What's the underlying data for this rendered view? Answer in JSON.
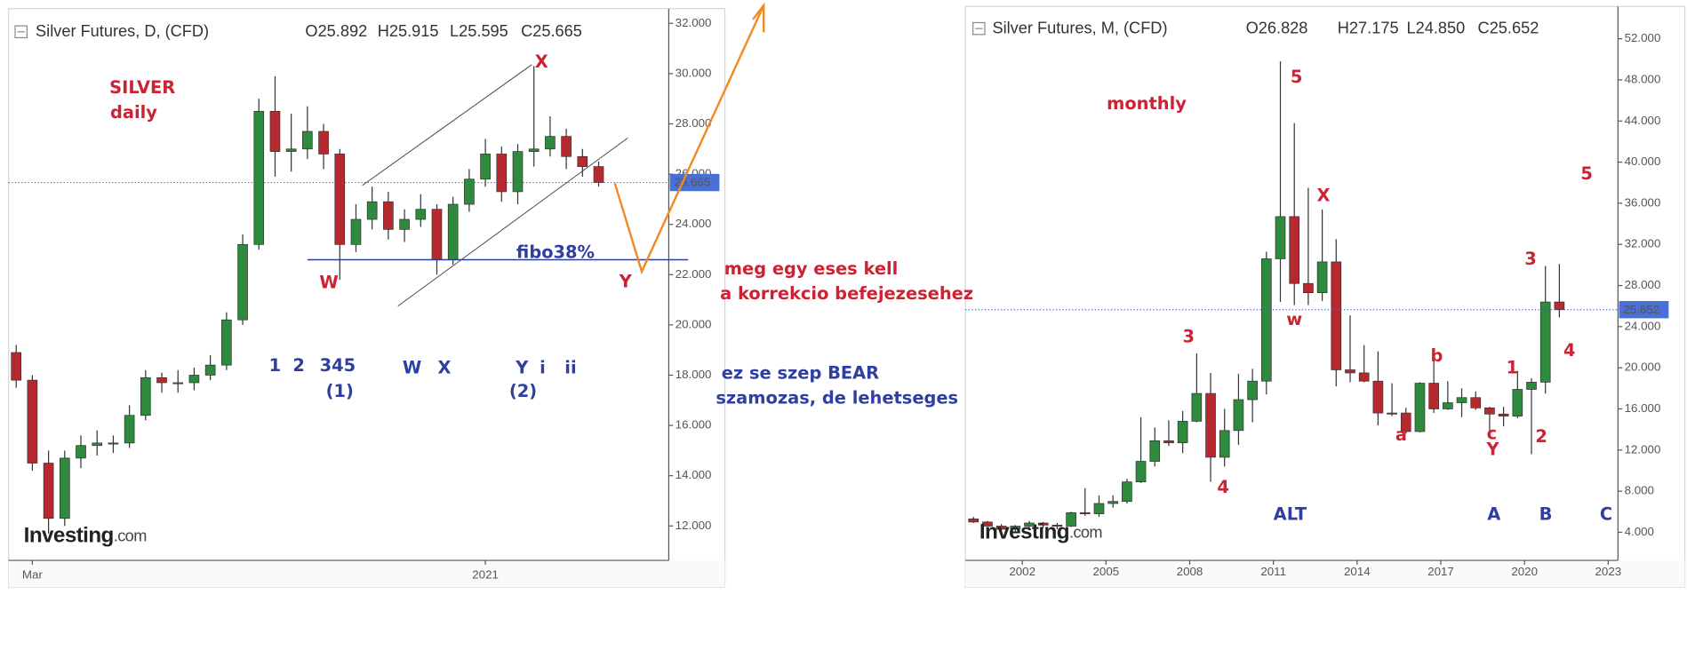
{
  "chart_data": [
    {
      "type": "candlestick",
      "title": "Silver Futures, D, (CFD)",
      "header_values": [
        "O25.892",
        "H25.915",
        "L25.595",
        "C25.665"
      ],
      "up_color": "#2e8b3e",
      "down_color": "#b8292f",
      "ylim": [
        10.63,
        32.5
      ],
      "yticks": [
        {
          "value": 12,
          "label": "12.000"
        },
        {
          "value": 14,
          "label": "14.000"
        },
        {
          "value": 16,
          "label": "16.000"
        },
        {
          "value": 18,
          "label": "18.000"
        },
        {
          "value": 20,
          "label": "20.000"
        },
        {
          "value": 22,
          "label": "22.000"
        },
        {
          "value": 24,
          "label": "24.000"
        },
        {
          "value": 26,
          "label": "26.000"
        },
        {
          "value": 28,
          "label": "28.000"
        },
        {
          "value": 30,
          "label": "30.000"
        },
        {
          "value": 32,
          "label": "32.000"
        }
      ],
      "last_price": 25.665,
      "categories": [
        null,
        "Mar",
        null,
        null,
        null,
        null,
        null,
        null,
        null,
        null,
        null,
        null,
        null,
        null,
        null,
        null,
        null,
        null,
        null,
        null,
        null,
        null,
        null,
        null,
        null,
        null,
        null,
        null,
        null,
        "2021",
        null,
        null,
        null,
        null,
        null,
        null,
        null
      ],
      "ohlc": [
        [
          18.9,
          19.2,
          17.5,
          17.8
        ],
        [
          17.8,
          18.0,
          14.2,
          14.5
        ],
        [
          14.5,
          15.0,
          11.7,
          12.3
        ],
        [
          12.3,
          15.0,
          12.0,
          14.7
        ],
        [
          14.7,
          15.6,
          14.3,
          15.2
        ],
        [
          15.2,
          15.8,
          14.8,
          15.3
        ],
        [
          15.3,
          15.6,
          14.9,
          15.3
        ],
        [
          15.3,
          16.8,
          15.1,
          16.4
        ],
        [
          16.4,
          18.2,
          16.2,
          17.9
        ],
        [
          17.9,
          18.1,
          17.3,
          17.7
        ],
        [
          17.7,
          18.2,
          17.3,
          17.7
        ],
        [
          17.7,
          18.3,
          17.4,
          18.0
        ],
        [
          18.0,
          18.8,
          17.8,
          18.4
        ],
        [
          18.4,
          20.5,
          18.2,
          20.2
        ],
        [
          20.2,
          23.6,
          20.0,
          23.2
        ],
        [
          23.2,
          29.0,
          23.0,
          28.5
        ],
        [
          28.5,
          29.9,
          25.9,
          26.9
        ],
        [
          26.9,
          28.4,
          26.1,
          27.0
        ],
        [
          27.0,
          28.7,
          26.6,
          27.7
        ],
        [
          27.7,
          28.0,
          26.2,
          26.8
        ],
        [
          26.8,
          27.0,
          21.8,
          23.2
        ],
        [
          23.2,
          24.8,
          22.9,
          24.2
        ],
        [
          24.2,
          25.5,
          23.8,
          24.9
        ],
        [
          24.9,
          25.3,
          23.4,
          23.8
        ],
        [
          23.8,
          24.6,
          23.3,
          24.2
        ],
        [
          24.2,
          25.2,
          23.9,
          24.6
        ],
        [
          24.6,
          24.8,
          22.0,
          22.6
        ],
        [
          22.6,
          25.1,
          22.4,
          24.8
        ],
        [
          24.8,
          26.2,
          24.5,
          25.8
        ],
        [
          25.8,
          27.4,
          25.5,
          26.8
        ],
        [
          26.8,
          27.1,
          24.9,
          25.3
        ],
        [
          25.3,
          27.2,
          24.8,
          26.9
        ],
        [
          26.9,
          30.3,
          26.3,
          27.0
        ],
        [
          27.0,
          28.3,
          26.7,
          27.5
        ],
        [
          27.5,
          27.8,
          26.2,
          26.7
        ],
        [
          26.7,
          27.0,
          25.9,
          26.3
        ],
        [
          26.3,
          26.5,
          25.5,
          25.665
        ]
      ]
    },
    {
      "type": "candlestick",
      "title": "Silver Futures, M, (CFD)",
      "header_values": [
        "O26.828",
        "H27.175",
        "L24.850",
        "C25.652"
      ],
      "up_color": "#2e8b3e",
      "down_color": "#b8292f",
      "ylim": [
        1.27,
        54.93
      ],
      "yticks": [
        {
          "value": 4,
          "label": "4.000"
        },
        {
          "value": 8,
          "label": "8.000"
        },
        {
          "value": 12,
          "label": "12.000"
        },
        {
          "value": 16,
          "label": "16.000"
        },
        {
          "value": 20,
          "label": "20.000"
        },
        {
          "value": 24,
          "label": "24.000"
        },
        {
          "value": 28,
          "label": "28.000"
        },
        {
          "value": 32,
          "label": "32.000"
        },
        {
          "value": 36,
          "label": "36.000"
        },
        {
          "value": 40,
          "label": "40.000"
        },
        {
          "value": 44,
          "label": "44.000"
        },
        {
          "value": 48,
          "label": "48.000"
        },
        {
          "value": 52,
          "label": "52.000"
        }
      ],
      "last_price": 25.652,
      "xlim": [
        1999.96,
        2023.35
      ],
      "xticks": [
        2002,
        2005,
        2008,
        2011,
        2014,
        2017,
        2020,
        2023
      ],
      "x": [
        2000.25,
        2000.75,
        2001.25,
        2001.75,
        2002.25,
        2002.75,
        2003.25,
        2003.75,
        2004.25,
        2004.75,
        2005.25,
        2005.75,
        2006.25,
        2006.75,
        2007.25,
        2007.75,
        2008.25,
        2008.75,
        2009.25,
        2009.75,
        2010.25,
        2010.75,
        2011.25,
        2011.75,
        2012.25,
        2012.75,
        2013.25,
        2013.75,
        2014.25,
        2014.75,
        2015.25,
        2015.75,
        2016.25,
        2016.75,
        2017.25,
        2017.75,
        2018.25,
        2018.75,
        2019.25,
        2019.75,
        2020.25,
        2020.75,
        2021.25
      ],
      "ohlc": [
        [
          5.3,
          5.5,
          4.9,
          5.0
        ],
        [
          5.0,
          5.1,
          4.6,
          4.6
        ],
        [
          4.6,
          4.8,
          4.2,
          4.3
        ],
        [
          4.3,
          4.7,
          4.0,
          4.6
        ],
        [
          4.6,
          5.1,
          4.4,
          4.9
        ],
        [
          4.9,
          5.0,
          4.4,
          4.7
        ],
        [
          4.7,
          4.9,
          4.3,
          4.6
        ],
        [
          4.6,
          6.0,
          4.5,
          5.9
        ],
        [
          5.9,
          8.3,
          5.6,
          5.8
        ],
        [
          5.8,
          7.6,
          5.5,
          6.8
        ],
        [
          6.8,
          7.6,
          6.4,
          7.0
        ],
        [
          7.0,
          9.2,
          6.8,
          8.9
        ],
        [
          8.9,
          15.2,
          8.8,
          10.9
        ],
        [
          10.9,
          14.2,
          10.4,
          12.9
        ],
        [
          12.9,
          14.9,
          12.4,
          12.7
        ],
        [
          12.7,
          15.8,
          11.7,
          14.8
        ],
        [
          14.8,
          21.4,
          14.7,
          17.5
        ],
        [
          17.5,
          19.5,
          8.9,
          11.3
        ],
        [
          11.3,
          16.0,
          10.4,
          13.9
        ],
        [
          13.9,
          19.4,
          12.5,
          16.9
        ],
        [
          16.9,
          19.9,
          14.7,
          18.7
        ],
        [
          18.7,
          31.3,
          17.4,
          30.6
        ],
        [
          30.6,
          49.8,
          26.4,
          34.7
        ],
        [
          34.7,
          43.8,
          26.1,
          28.2
        ],
        [
          28.2,
          37.5,
          26.1,
          27.3
        ],
        [
          27.3,
          35.4,
          26.5,
          30.3
        ],
        [
          30.3,
          32.5,
          18.2,
          19.8
        ],
        [
          19.8,
          25.1,
          18.6,
          19.5
        ],
        [
          19.5,
          22.2,
          18.6,
          18.7
        ],
        [
          18.7,
          21.6,
          14.4,
          15.6
        ],
        [
          15.6,
          18.5,
          15.3,
          15.6
        ],
        [
          15.6,
          16.1,
          13.6,
          13.8
        ],
        [
          13.8,
          18.6,
          13.7,
          18.5
        ],
        [
          18.5,
          21.2,
          15.6,
          16.0
        ],
        [
          16.0,
          18.7,
          15.9,
          16.6
        ],
        [
          16.6,
          18.0,
          15.2,
          17.1
        ],
        [
          17.1,
          17.7,
          15.9,
          16.1
        ],
        [
          16.1,
          16.2,
          13.9,
          15.5
        ],
        [
          15.5,
          16.2,
          14.3,
          15.3
        ],
        [
          15.3,
          19.7,
          15.1,
          17.9
        ],
        [
          17.9,
          19.0,
          11.6,
          18.6
        ],
        [
          18.6,
          29.9,
          17.5,
          26.4
        ],
        [
          26.4,
          30.1,
          24.9,
          25.652
        ]
      ]
    }
  ],
  "branding": [
    "Investing",
    ".com"
  ],
  "annotations": [
    {
      "text": "SILVER",
      "color": "#cc2233"
    },
    {
      "text": "daily",
      "color": "#cc2233"
    },
    {
      "text": "X",
      "color": "#cc2233"
    },
    {
      "text": "W",
      "color": "#cc2233"
    },
    {
      "text": "Y",
      "color": "#cc2233"
    },
    {
      "text": "fibo38%",
      "color": "#2f3f9f"
    },
    {
      "text": "1",
      "color": "#2f3f9f"
    },
    {
      "text": "2",
      "color": "#2f3f9f"
    },
    {
      "text": "345",
      "color": "#2f3f9f"
    },
    {
      "text": "(1)",
      "color": "#2f3f9f"
    },
    {
      "text": "W",
      "color": "#2f3f9f"
    },
    {
      "text": "X",
      "color": "#2f3f9f"
    },
    {
      "text": "Y",
      "color": "#2f3f9f"
    },
    {
      "text": "i",
      "color": "#2f3f9f"
    },
    {
      "text": "ii",
      "color": "#2f3f9f"
    },
    {
      "text": "(2)",
      "color": "#2f3f9f"
    },
    {
      "text": "meg egy eses kell",
      "color": "#cc2233"
    },
    {
      "text": "a korrekcio befejezesehez",
      "color": "#cc2233"
    },
    {
      "text": "ez se szep BEAR",
      "color": "#2f3f9f"
    },
    {
      "text": "szamozas, de lehetseges",
      "color": "#2f3f9f"
    },
    {
      "text": "monthly",
      "color": "#cc2233"
    },
    {
      "text": "5",
      "color": "#cc2233"
    },
    {
      "text": "X",
      "color": "#cc2233"
    },
    {
      "text": "w",
      "color": "#cc2233"
    },
    {
      "text": "3",
      "color": "#cc2233"
    },
    {
      "text": "4",
      "color": "#cc2233"
    },
    {
      "text": "ALT",
      "color": "#2f3f9f"
    },
    {
      "text": "b",
      "color": "#cc2233"
    },
    {
      "text": "a",
      "color": "#cc2233"
    },
    {
      "text": "c",
      "color": "#cc2233"
    },
    {
      "text": "Y",
      "color": "#cc2233"
    },
    {
      "text": "1",
      "color": "#cc2233"
    },
    {
      "text": "2",
      "color": "#cc2233"
    },
    {
      "text": "3",
      "color": "#cc2233"
    },
    {
      "text": "4",
      "color": "#cc2233"
    },
    {
      "text": "5",
      "color": "#cc2233"
    },
    {
      "text": "A",
      "color": "#2f3f9f"
    },
    {
      "text": "B",
      "color": "#2f3f9f"
    },
    {
      "text": "C",
      "color": "#2f3f9f"
    }
  ]
}
